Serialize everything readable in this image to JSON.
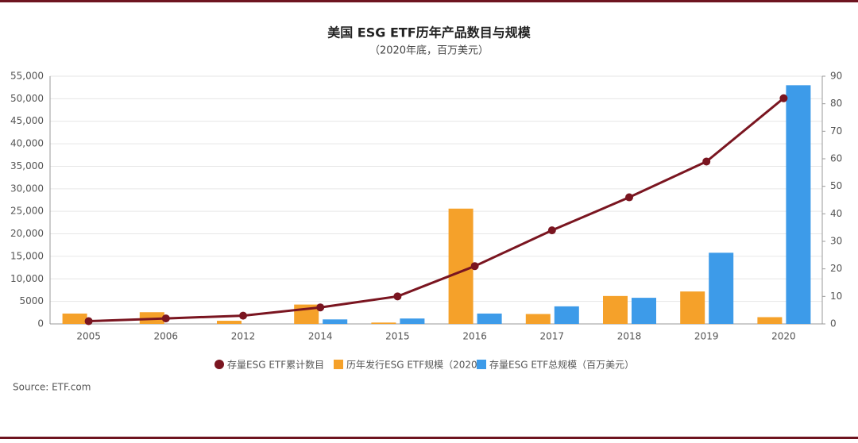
{
  "chart_data": {
    "type": "bar-line",
    "title": "美国 ESG ETF历年产品数目与规模",
    "subtitle": "（2020年底，百万美元）",
    "source": "Source: ETF.com",
    "categories": [
      "2005",
      "2006",
      "2012",
      "2014",
      "2015",
      "2016",
      "2017",
      "2018",
      "2019",
      "2020"
    ],
    "series": [
      {
        "name": "存量ESG ETF累计数目",
        "color": "#7a1520",
        "kind": "line",
        "axis": "y2",
        "values": [
          1,
          2,
          3,
          6,
          10,
          21,
          34,
          46,
          59,
          82
        ]
      },
      {
        "name": "历年发行ESG ETF规模（2020）",
        "color": "#f5a12a",
        "kind": "bar",
        "values": [
          2300,
          2600,
          700,
          4300,
          300,
          25600,
          2200,
          6200,
          7200,
          1500
        ]
      },
      {
        "name": "存量ESG ETF总规模（百万美元）",
        "color": "#3d9be9",
        "kind": "bar",
        "values": [
          null,
          null,
          null,
          1000,
          1200,
          2300,
          3900,
          5800,
          15800,
          53000
        ]
      }
    ],
    "ylim": [
      0,
      55000
    ],
    "yticks": [
      0,
      5000,
      {
        "value": 10000,
        "label": "10,000"
      },
      {
        "value": 15000,
        "label": "15,000"
      },
      {
        "value": 20000,
        "label": "20,000"
      },
      {
        "value": 25000,
        "label": "25,000"
      },
      {
        "value": 30000,
        "label": "30,000"
      },
      {
        "value": 35000,
        "label": "35,000"
      },
      {
        "value": 40000,
        "label": "40,000"
      },
      {
        "value": 45000,
        "label": "45,000"
      },
      {
        "value": 50000,
        "label": "50,000"
      },
      {
        "value": 55000,
        "label": "55,000"
      }
    ],
    "y2lim": [
      0,
      90
    ],
    "y2ticks": [
      0,
      10,
      20,
      30,
      40,
      50,
      60,
      70,
      80,
      90
    ],
    "grid": true
  }
}
